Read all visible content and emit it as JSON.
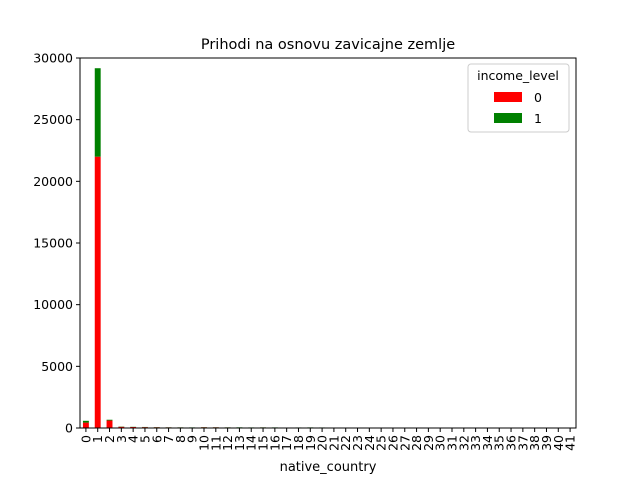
{
  "chart_data": {
    "type": "bar",
    "stacked": true,
    "title": "Prihodi na osnovu zavicajne zemlje",
    "xlabel": "native_country",
    "ylabel": "",
    "ylim": [
      0,
      30000
    ],
    "yticks": [
      0,
      5000,
      10000,
      15000,
      20000,
      25000,
      30000
    ],
    "categories": [
      "0",
      "1",
      "2",
      "3",
      "4",
      "5",
      "6",
      "7",
      "8",
      "9",
      "10",
      "11",
      "12",
      "13",
      "14",
      "15",
      "16",
      "17",
      "18",
      "19",
      "20",
      "21",
      "22",
      "23",
      "24",
      "25",
      "26",
      "27",
      "28",
      "29",
      "30",
      "31",
      "32",
      "33",
      "34",
      "35",
      "36",
      "37",
      "38",
      "39",
      "40",
      "41"
    ],
    "series": [
      {
        "name": "0",
        "color": "#ff0000",
        "values": [
          437,
          22000,
          610,
          100,
          80,
          70,
          60,
          50,
          45,
          40,
          60,
          55,
          45,
          40,
          35,
          45,
          40,
          30,
          35,
          40,
          35,
          30,
          15,
          15,
          12,
          12,
          10,
          10,
          10,
          8,
          8,
          8,
          6,
          6,
          6,
          5,
          5,
          5,
          4,
          4,
          4,
          4
        ]
      },
      {
        "name": "1",
        "color": "#008000",
        "values": [
          146,
          7171,
          60,
          20,
          15,
          15,
          12,
          10,
          10,
          10,
          12,
          10,
          10,
          15,
          12,
          10,
          10,
          10,
          10,
          10,
          10,
          5,
          3,
          3,
          3,
          3,
          2,
          2,
          2,
          2,
          2,
          2,
          1,
          1,
          1,
          1,
          1,
          1,
          1,
          1,
          1,
          1
        ]
      }
    ],
    "legend": {
      "title": "income_level",
      "placement": "top-right"
    },
    "grid": false
  }
}
